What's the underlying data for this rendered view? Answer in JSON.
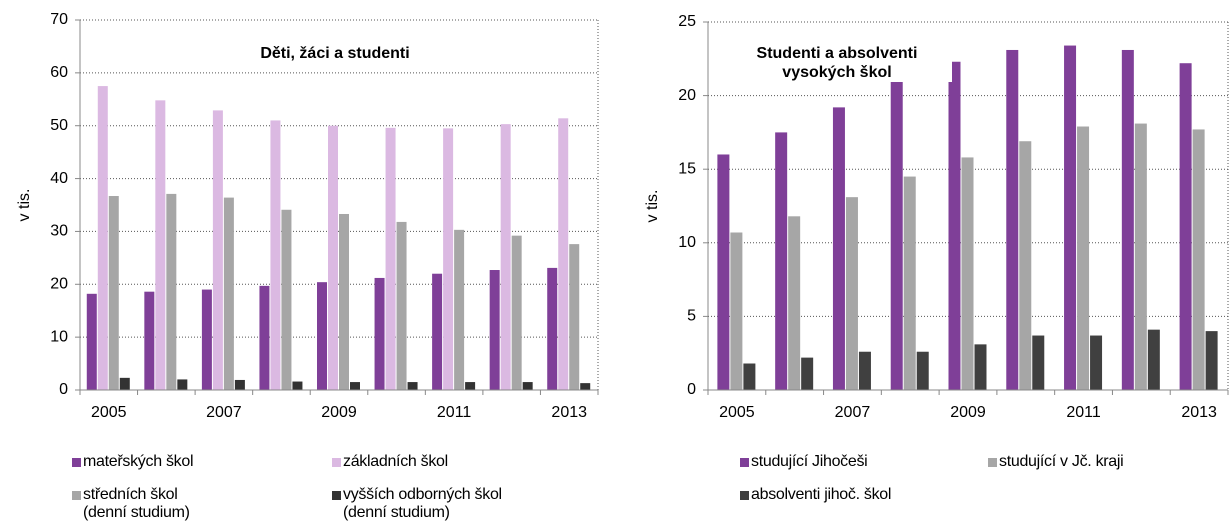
{
  "chart_data": [
    {
      "type": "bar",
      "title": "Děti, žáci  a studenti",
      "y_label": "v tis.",
      "categories": [
        "2005",
        null,
        "2007",
        null,
        "2009",
        null,
        "2011",
        null,
        "2013"
      ],
      "ylim": [
        0,
        70
      ],
      "yticks": [
        0,
        10,
        20,
        30,
        40,
        50,
        60,
        70
      ],
      "grid": true,
      "series": [
        {
          "name": "mateřských škol",
          "color": "#7f3f98",
          "values": [
            18.2,
            18.6,
            19.0,
            19.7,
            20.4,
            21.2,
            22.0,
            22.7,
            23.1
          ]
        },
        {
          "name": "základních škol",
          "color": "#dbb9e2",
          "values": [
            57.5,
            54.8,
            52.9,
            51.0,
            50.0,
            49.6,
            49.5,
            50.3,
            51.4
          ]
        },
        {
          "name": "středních škol\n(denní studium)",
          "color": "#a6a6a6",
          "values": [
            36.7,
            37.1,
            36.4,
            34.1,
            33.3,
            31.8,
            30.3,
            29.2,
            27.6
          ]
        },
        {
          "name": "vyšších odborných škol\n(denní studium)",
          "color": "#333333",
          "values": [
            2.3,
            2.0,
            1.9,
            1.6,
            1.5,
            1.5,
            1.5,
            1.5,
            1.3
          ]
        }
      ]
    },
    {
      "type": "bar",
      "title": "Studenti a absolventi\nvysokých škol",
      "y_label": "v tis.",
      "categories": [
        "2005",
        null,
        "2007",
        null,
        "2009",
        null,
        "2011",
        null,
        "2013"
      ],
      "ylim": [
        0,
        25
      ],
      "yticks": [
        0,
        5,
        10,
        15,
        20,
        25
      ],
      "grid": true,
      "series": [
        {
          "name": "studující Jihočeši",
          "color": "#7f3f98",
          "values": [
            16.0,
            17.5,
            19.2,
            21.0,
            22.3,
            23.1,
            23.4,
            23.1,
            22.2
          ]
        },
        {
          "name": "studující v Jč. kraji",
          "color": "#a6a6a6",
          "values": [
            10.7,
            11.8,
            13.1,
            14.5,
            15.8,
            16.9,
            17.9,
            18.1,
            17.7
          ]
        },
        {
          "name": "absolventi jihoč. škol",
          "color": "#404040",
          "values": [
            1.8,
            2.2,
            2.6,
            2.6,
            3.1,
            3.7,
            3.7,
            4.1,
            4.0
          ]
        }
      ]
    }
  ]
}
